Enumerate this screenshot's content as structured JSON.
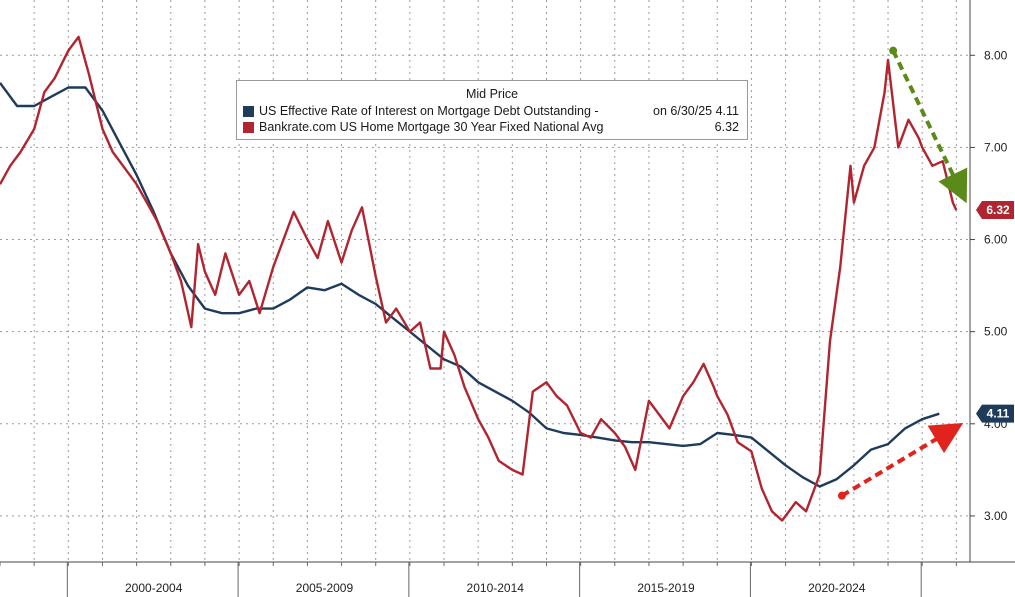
{
  "chart_data": {
    "type": "line",
    "title": "Mid Price",
    "ylim": [
      2.5,
      8.6
    ],
    "yticks": [
      "3.00",
      "4.00",
      "5.00",
      "6.00",
      "7.00",
      "8.00"
    ],
    "x_period_labels": [
      "2000-2004",
      "2005-2009",
      "2010-2014",
      "2015-2019",
      "2020-2024"
    ],
    "grid": true,
    "legend_position": "top-center",
    "series": [
      {
        "name": "US Effective Rate of Interest on Mortgage Debt Outstanding -",
        "legend_note": "on 6/30/25",
        "last_value": "4.11",
        "color": "#1f3b5c",
        "points": [
          [
            1998.0,
            7.7
          ],
          [
            1998.5,
            7.45
          ],
          [
            1999.0,
            7.45
          ],
          [
            1999.5,
            7.55
          ],
          [
            2000.0,
            7.65
          ],
          [
            2000.5,
            7.65
          ],
          [
            2001.0,
            7.4
          ],
          [
            2001.5,
            7.05
          ],
          [
            2002.0,
            6.7
          ],
          [
            2002.5,
            6.3
          ],
          [
            2003.0,
            5.85
          ],
          [
            2003.5,
            5.5
          ],
          [
            2004.0,
            5.25
          ],
          [
            2004.5,
            5.2
          ],
          [
            2005.0,
            5.2
          ],
          [
            2005.5,
            5.25
          ],
          [
            2006.0,
            5.25
          ],
          [
            2006.5,
            5.35
          ],
          [
            2007.0,
            5.48
          ],
          [
            2007.5,
            5.45
          ],
          [
            2008.0,
            5.52
          ],
          [
            2008.5,
            5.4
          ],
          [
            2009.0,
            5.3
          ],
          [
            2009.5,
            5.15
          ],
          [
            2010.0,
            5.0
          ],
          [
            2010.5,
            4.85
          ],
          [
            2011.0,
            4.7
          ],
          [
            2011.5,
            4.62
          ],
          [
            2012.0,
            4.45
          ],
          [
            2012.5,
            4.35
          ],
          [
            2013.0,
            4.25
          ],
          [
            2013.5,
            4.12
          ],
          [
            2014.0,
            3.95
          ],
          [
            2014.5,
            3.9
          ],
          [
            2015.0,
            3.88
          ],
          [
            2015.5,
            3.85
          ],
          [
            2016.0,
            3.82
          ],
          [
            2016.5,
            3.8
          ],
          [
            2017.0,
            3.8
          ],
          [
            2017.5,
            3.78
          ],
          [
            2018.0,
            3.76
          ],
          [
            2018.5,
            3.78
          ],
          [
            2019.0,
            3.9
          ],
          [
            2019.5,
            3.88
          ],
          [
            2020.0,
            3.85
          ],
          [
            2020.5,
            3.7
          ],
          [
            2021.0,
            3.55
          ],
          [
            2021.5,
            3.42
          ],
          [
            2022.0,
            3.32
          ],
          [
            2022.5,
            3.4
          ],
          [
            2023.0,
            3.55
          ],
          [
            2023.5,
            3.72
          ],
          [
            2024.0,
            3.78
          ],
          [
            2024.5,
            3.95
          ],
          [
            2025.0,
            4.05
          ],
          [
            2025.5,
            4.11
          ]
        ]
      },
      {
        "name": "Bankrate.com US Home Mortgage 30 Year Fixed National Avg",
        "last_value": "6.32",
        "color": "#b0252f",
        "points": [
          [
            1998.0,
            6.6
          ],
          [
            1998.3,
            6.8
          ],
          [
            1998.6,
            6.95
          ],
          [
            1999.0,
            7.2
          ],
          [
            1999.3,
            7.6
          ],
          [
            1999.6,
            7.75
          ],
          [
            2000.0,
            8.05
          ],
          [
            2000.3,
            8.2
          ],
          [
            2000.6,
            7.8
          ],
          [
            2001.0,
            7.2
          ],
          [
            2001.3,
            6.95
          ],
          [
            2001.6,
            6.8
          ],
          [
            2002.0,
            6.6
          ],
          [
            2002.3,
            6.4
          ],
          [
            2002.6,
            6.2
          ],
          [
            2003.0,
            5.85
          ],
          [
            2003.3,
            5.55
          ],
          [
            2003.6,
            5.05
          ],
          [
            2003.8,
            5.95
          ],
          [
            2004.0,
            5.65
          ],
          [
            2004.3,
            5.4
          ],
          [
            2004.6,
            5.85
          ],
          [
            2005.0,
            5.4
          ],
          [
            2005.3,
            5.55
          ],
          [
            2005.6,
            5.2
          ],
          [
            2006.0,
            5.7
          ],
          [
            2006.3,
            6.0
          ],
          [
            2006.6,
            6.3
          ],
          [
            2007.0,
            6.0
          ],
          [
            2007.3,
            5.8
          ],
          [
            2007.6,
            6.2
          ],
          [
            2008.0,
            5.75
          ],
          [
            2008.3,
            6.1
          ],
          [
            2008.6,
            6.35
          ],
          [
            2009.0,
            5.6
          ],
          [
            2009.3,
            5.1
          ],
          [
            2009.6,
            5.25
          ],
          [
            2010.0,
            5.0
          ],
          [
            2010.3,
            5.1
          ],
          [
            2010.6,
            4.6
          ],
          [
            2010.9,
            4.6
          ],
          [
            2011.0,
            5.0
          ],
          [
            2011.3,
            4.75
          ],
          [
            2011.6,
            4.4
          ],
          [
            2012.0,
            4.05
          ],
          [
            2012.3,
            3.85
          ],
          [
            2012.6,
            3.6
          ],
          [
            2013.0,
            3.5
          ],
          [
            2013.3,
            3.45
          ],
          [
            2013.6,
            4.35
          ],
          [
            2014.0,
            4.45
          ],
          [
            2014.3,
            4.3
          ],
          [
            2014.6,
            4.2
          ],
          [
            2015.0,
            3.9
          ],
          [
            2015.3,
            3.85
          ],
          [
            2015.6,
            4.05
          ],
          [
            2016.0,
            3.9
          ],
          [
            2016.3,
            3.75
          ],
          [
            2016.6,
            3.5
          ],
          [
            2017.0,
            4.25
          ],
          [
            2017.3,
            4.1
          ],
          [
            2017.6,
            3.95
          ],
          [
            2018.0,
            4.3
          ],
          [
            2018.3,
            4.45
          ],
          [
            2018.6,
            4.65
          ],
          [
            2018.9,
            4.4
          ],
          [
            2019.0,
            4.3
          ],
          [
            2019.3,
            4.1
          ],
          [
            2019.6,
            3.8
          ],
          [
            2020.0,
            3.7
          ],
          [
            2020.3,
            3.3
          ],
          [
            2020.6,
            3.05
          ],
          [
            2020.9,
            2.95
          ],
          [
            2021.0,
            3.0
          ],
          [
            2021.3,
            3.15
          ],
          [
            2021.6,
            3.05
          ],
          [
            2022.0,
            3.45
          ],
          [
            2022.3,
            4.9
          ],
          [
            2022.6,
            5.7
          ],
          [
            2022.9,
            6.8
          ],
          [
            2023.0,
            6.4
          ],
          [
            2023.3,
            6.8
          ],
          [
            2023.6,
            7.0
          ],
          [
            2023.9,
            7.6
          ],
          [
            2024.0,
            7.95
          ],
          [
            2024.3,
            7.0
          ],
          [
            2024.6,
            7.3
          ],
          [
            2024.9,
            7.1
          ],
          [
            2025.0,
            7.0
          ],
          [
            2025.3,
            6.8
          ],
          [
            2025.6,
            6.85
          ],
          [
            2025.9,
            6.4
          ],
          [
            2026.0,
            6.32
          ]
        ]
      }
    ],
    "annotations": [
      {
        "kind": "dashed-arrow",
        "color": "#5a8a1a",
        "direction": "down"
      },
      {
        "kind": "dashed-arrow",
        "color": "#e0231c",
        "direction": "up"
      }
    ],
    "value_tags": [
      {
        "text": "6.32",
        "color": "#b0252f",
        "value": 6.32
      },
      {
        "text": "4.11",
        "color": "#1f3b5c",
        "value": 4.11
      }
    ]
  }
}
